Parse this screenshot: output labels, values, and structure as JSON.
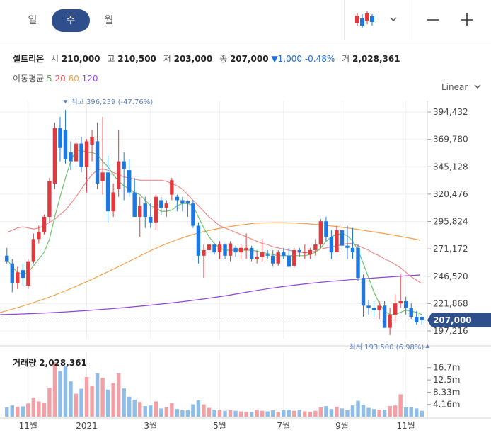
{
  "periods": [
    {
      "label": "일",
      "active": false
    },
    {
      "label": "주",
      "active": true
    },
    {
      "label": "월",
      "active": false
    }
  ],
  "toolbar": {
    "chart_icon": "candlestick-icon",
    "dropdown_icon": "chevron-down-icon",
    "minimize_icon": "minus-icon",
    "add_icon": "plus-icon"
  },
  "quote": {
    "name": "셀트리온",
    "open_label": "시",
    "open": "210,000",
    "high_label": "고",
    "high": "210,500",
    "low_label": "저",
    "low": "203,000",
    "close_label": "종",
    "close": "207,000",
    "change": "▼1,000 -0.48%",
    "volume_label": "거",
    "volume": "2,028,361"
  },
  "ma_legend": {
    "label": "이동평균",
    "items": [
      {
        "period": "5",
        "color": "#4caf50"
      },
      {
        "period": "20",
        "color": "#ef5350"
      },
      {
        "period": "60",
        "color": "#f5a04a"
      },
      {
        "period": "120",
        "color": "#8e44d8"
      }
    ]
  },
  "scale": {
    "label": "Linear"
  },
  "colors": {
    "up": "#e0393e",
    "down": "#1f78e0",
    "up_vol": "#f2a0a6",
    "down_vol": "#8fbde8",
    "badge": "#2f4e8c"
  },
  "chart_data": {
    "type": "candlestick",
    "y_ticks": [
      "394,432",
      "369,780",
      "345,128",
      "320,476",
      "295,824",
      "271,172",
      "246,520",
      "221,868",
      "197,216"
    ],
    "y_tick_values": [
      394432,
      369780,
      345128,
      320476,
      295824,
      271172,
      246520,
      221868,
      197216
    ],
    "x_labels": [
      "11월",
      "2021",
      "3월",
      "5월",
      "7월",
      "9월",
      "11월"
    ],
    "x_label_index": [
      4,
      15,
      27,
      40,
      52,
      63,
      75
    ],
    "last_price": "207,000",
    "max_label": "최고 396,239 (-47.76%)",
    "min_label": "최저 193,500 (6.98%)",
    "max_index": 11,
    "min_index": 78,
    "candles": [
      [
        265000,
        272000,
        258000,
        260000
      ],
      [
        258000,
        262000,
        232000,
        240000
      ],
      [
        240000,
        255000,
        235000,
        250000
      ],
      [
        252000,
        258000,
        238000,
        245000
      ],
      [
        238000,
        262000,
        235000,
        260000
      ],
      [
        260000,
        285000,
        258000,
        280000
      ],
      [
        280000,
        292000,
        276000,
        286000
      ],
      [
        286000,
        302000,
        284000,
        300000
      ],
      [
        300000,
        335000,
        295000,
        332000
      ],
      [
        330000,
        385000,
        325000,
        380000
      ],
      [
        380000,
        390000,
        350000,
        362000
      ],
      [
        378000,
        396239,
        348000,
        352000
      ],
      [
        358000,
        368000,
        342000,
        350000
      ],
      [
        350000,
        372000,
        345000,
        366000
      ],
      [
        366000,
        372000,
        340000,
        345000
      ],
      [
        345000,
        370000,
        322000,
        368000
      ],
      [
        365000,
        378000,
        350000,
        372000
      ],
      [
        368000,
        385000,
        325000,
        330000
      ],
      [
        332000,
        390000,
        320000,
        340000
      ],
      [
        340000,
        355000,
        295000,
        305000
      ],
      [
        305000,
        330000,
        300000,
        322000
      ],
      [
        325000,
        378000,
        318000,
        350000
      ],
      [
        350000,
        358000,
        315000,
        343000
      ],
      [
        342000,
        352000,
        318000,
        322000
      ],
      [
        322000,
        335000,
        300000,
        300000
      ],
      [
        300000,
        318000,
        282000,
        310000
      ],
      [
        312000,
        318000,
        290000,
        300000
      ],
      [
        300000,
        312000,
        290000,
        295000
      ],
      [
        295000,
        320000,
        288000,
        318000
      ],
      [
        315000,
        318000,
        302000,
        308000
      ],
      [
        308000,
        315000,
        300000,
        312000
      ],
      [
        320000,
        335000,
        315000,
        333000
      ],
      [
        318000,
        320000,
        305000,
        315000
      ],
      [
        315000,
        318000,
        305000,
        312000
      ],
      [
        314000,
        315000,
        300000,
        312000
      ],
      [
        312000,
        315000,
        290000,
        292000
      ],
      [
        292000,
        295000,
        258000,
        265000
      ],
      [
        265000,
        275000,
        245000,
        270000
      ],
      [
        270000,
        278000,
        262000,
        275000
      ],
      [
        275000,
        276000,
        266000,
        268000
      ],
      [
        268000,
        278000,
        262000,
        275000
      ],
      [
        275000,
        276000,
        262000,
        265000
      ],
      [
        265000,
        278000,
        260000,
        276000
      ],
      [
        272000,
        274000,
        264000,
        268000
      ],
      [
        268000,
        275000,
        262000,
        272000
      ],
      [
        270000,
        285000,
        262000,
        272000
      ],
      [
        272000,
        274000,
        260000,
        262000
      ],
      [
        262000,
        270000,
        258000,
        264000
      ],
      [
        264000,
        280000,
        260000,
        268000
      ],
      [
        266000,
        270000,
        262000,
        265000
      ],
      [
        265000,
        270000,
        255000,
        258000
      ],
      [
        258000,
        270000,
        256000,
        268000
      ],
      [
        268000,
        272000,
        262000,
        265000
      ],
      [
        265000,
        272000,
        255000,
        255000
      ],
      [
        256000,
        272000,
        254000,
        270000
      ],
      [
        270000,
        272000,
        264000,
        268000
      ],
      [
        268000,
        275000,
        262000,
        268000
      ],
      [
        266000,
        272000,
        262000,
        270000
      ],
      [
        270000,
        280000,
        265000,
        275000
      ],
      [
        275000,
        298000,
        272000,
        296000
      ],
      [
        296000,
        300000,
        278000,
        282000
      ],
      [
        282000,
        288000,
        262000,
        268000
      ],
      [
        268000,
        292000,
        268000,
        288000
      ],
      [
        288000,
        292000,
        270000,
        274000
      ],
      [
        274000,
        292000,
        262000,
        272000
      ],
      [
        272000,
        290000,
        262000,
        268000
      ],
      [
        272000,
        275000,
        242000,
        245000
      ],
      [
        245000,
        248000,
        210000,
        220000
      ],
      [
        220000,
        225000,
        212000,
        218000
      ],
      [
        218000,
        224000,
        210000,
        216000
      ],
      [
        216000,
        224000,
        208000,
        220000
      ],
      [
        220000,
        224000,
        200000,
        200000
      ],
      [
        200000,
        218000,
        193500,
        212000
      ],
      [
        212000,
        230000,
        205000,
        222000
      ],
      [
        222000,
        248000,
        218000,
        224000
      ],
      [
        224000,
        228000,
        212000,
        218000
      ],
      [
        218000,
        222000,
        208000,
        210000
      ],
      [
        210000,
        215000,
        203000,
        205000
      ],
      [
        210000,
        210500,
        203000,
        207000
      ]
    ],
    "volume_ticks": [
      "16.7m",
      "12.5m",
      "8.33m",
      "4.16m"
    ],
    "volume_tick_values": [
      16.7,
      12.5,
      8.33,
      4.16
    ],
    "volume_label": "거래량 2,028,361",
    "volumes": [
      3.2,
      3.8,
      3.4,
      3.5,
      4.5,
      6.5,
      5.2,
      4.8,
      9.8,
      18.5,
      15.5,
      17.2,
      12.0,
      7.8,
      9.5,
      13.5,
      10.5,
      14.8,
      13.2,
      9.2,
      11.4,
      14.8,
      9.6,
      6.8,
      5.8,
      5.0,
      3.6,
      3.8,
      5.2,
      2.8,
      3.2,
      4.6,
      2.6,
      2.2,
      2.4,
      4.2,
      5.6,
      4.2,
      3.0,
      2.4,
      2.2,
      2.0,
      2.2,
      2.0,
      1.8,
      1.6,
      1.6,
      2.4,
      2.0,
      1.8,
      2.2,
      1.6,
      2.2,
      2.4,
      2.0,
      2.4,
      1.8,
      1.6,
      2.0,
      3.2,
      3.6,
      2.6,
      3.4,
      2.8,
      2.2,
      3.8,
      5.4,
      4.0,
      3.0,
      2.6,
      2.4,
      2.4,
      3.6,
      3.8,
      7.6,
      3.2,
      3.2,
      2.8,
      2.0
    ],
    "ma5": [
      262000,
      255000,
      250000,
      248000,
      250000,
      256000,
      262000,
      268000,
      280000,
      300000,
      318000,
      335000,
      350000,
      360000,
      360000,
      358000,
      358000,
      356000,
      350000,
      345000,
      338000,
      332000,
      328000,
      325000,
      322000,
      320000,
      315000,
      310000,
      308000,
      305000,
      305000,
      306000,
      310000,
      312000,
      312000,
      310000,
      300000,
      290000,
      282000,
      276000,
      272000,
      270000,
      270000,
      270000,
      270000,
      270000,
      270000,
      269000,
      268000,
      267000,
      266000,
      265000,
      265000,
      265000,
      265000,
      265000,
      265000,
      266000,
      268000,
      272000,
      278000,
      282000,
      284000,
      285000,
      283000,
      278000,
      270000,
      258000,
      245000,
      232000,
      222000,
      215000,
      212000,
      212000,
      214000,
      216000,
      215000,
      214000,
      212000
    ],
    "ma20": [
      286000,
      288000,
      290000,
      291000,
      290000,
      289000,
      290000,
      292000,
      295000,
      298000,
      302000,
      306000,
      312000,
      318000,
      325000,
      332000,
      338000,
      342000,
      343000,
      342000,
      340000,
      338000,
      336000,
      335000,
      334000,
      333000,
      333000,
      333000,
      333000,
      333000,
      332000,
      330000,
      328000,
      325000,
      320000,
      315000,
      310000,
      305000,
      300000,
      296000,
      292000,
      290000,
      288000,
      286000,
      284000,
      282000,
      280000,
      278000,
      276000,
      275000,
      273000,
      272000,
      271000,
      270000,
      269000,
      268000,
      268000,
      268000,
      269000,
      271000,
      272000,
      273000,
      274000,
      275000,
      276000,
      276000,
      274000,
      272000,
      270000,
      267000,
      265000,
      262000,
      260000,
      257000,
      254000,
      250000,
      246000,
      243000,
      240000
    ]
  }
}
